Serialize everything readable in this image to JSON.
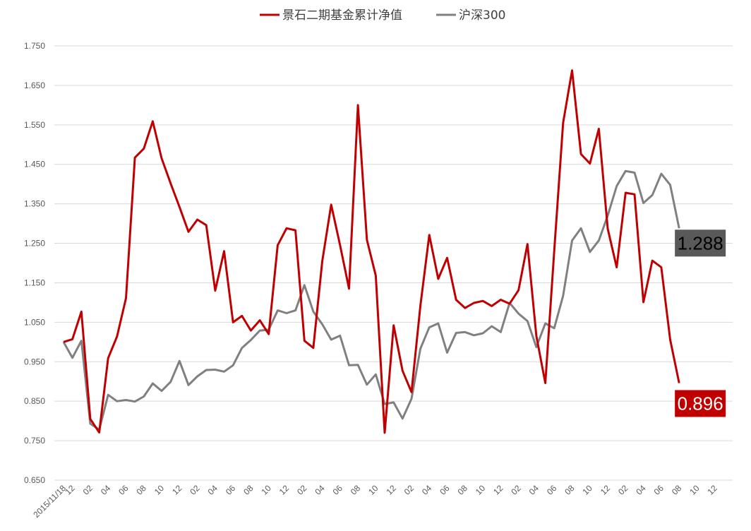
{
  "chart_data": {
    "type": "line",
    "ylim": [
      0.65,
      1.75
    ],
    "y_ticks": [
      "0.650",
      "0.750",
      "0.850",
      "0.950",
      "1.050",
      "1.150",
      "1.250",
      "1.350",
      "1.450",
      "1.550",
      "1.650",
      "1.750"
    ],
    "x_tick_labels": [
      "2015/11/18",
      "12",
      "02",
      "04",
      "06",
      "08",
      "10",
      "12",
      "02",
      "04",
      "06",
      "08",
      "10",
      "12",
      "02",
      "04",
      "06",
      "08",
      "10",
      "12",
      "02",
      "04",
      "06",
      "08",
      "10",
      "12",
      "02",
      "04",
      "06",
      "08",
      "10",
      "12",
      "02",
      "04",
      "06",
      "08",
      "10",
      "12"
    ],
    "grid": true,
    "legend_position": "top",
    "series": [
      {
        "name": "景石二期基金累计净值",
        "color": "#C00000",
        "values": [
          1.0,
          1.007,
          1.077,
          0.805,
          0.771,
          0.959,
          1.014,
          1.111,
          1.467,
          1.49,
          1.559,
          1.465,
          1.402,
          1.342,
          1.279,
          1.31,
          1.296,
          1.13,
          1.23,
          1.05,
          1.066,
          1.029,
          1.055,
          1.02,
          1.245,
          1.288,
          1.283,
          1.003,
          0.985,
          1.205,
          1.348,
          1.245,
          1.135,
          1.6,
          1.259,
          1.168,
          0.77,
          1.042,
          0.927,
          0.873,
          1.092,
          1.271,
          1.16,
          1.213,
          1.107,
          1.086,
          1.099,
          1.104,
          1.091,
          1.107,
          1.097,
          1.131,
          1.248,
          1.015,
          0.896,
          1.23,
          1.555,
          1.688,
          1.476,
          1.452,
          1.54,
          1.287,
          1.189,
          1.378,
          1.374,
          1.101,
          1.206,
          1.189,
          1.006,
          0.896
        ],
        "end_label": "0.896",
        "end_label_fill": "#C00000",
        "end_label_text_color": "#FFFFFF"
      },
      {
        "name": "沪深300",
        "color": "#808080",
        "values": [
          1.0,
          0.96,
          1.003,
          0.793,
          0.778,
          0.866,
          0.85,
          0.853,
          0.849,
          0.862,
          0.895,
          0.876,
          0.899,
          0.952,
          0.891,
          0.913,
          0.929,
          0.93,
          0.925,
          0.941,
          0.985,
          1.005,
          1.029,
          1.031,
          1.08,
          1.073,
          1.08,
          1.144,
          1.077,
          1.045,
          1.006,
          1.016,
          0.941,
          0.942,
          0.892,
          0.918,
          0.843,
          0.847,
          0.806,
          0.856,
          0.983,
          1.037,
          1.047,
          0.973,
          1.023,
          1.025,
          1.017,
          1.022,
          1.04,
          1.025,
          1.099,
          1.072,
          1.053,
          0.987,
          1.047,
          1.035,
          1.117,
          1.257,
          1.288,
          1.228,
          1.257,
          1.32,
          1.395,
          1.433,
          1.429,
          1.352,
          1.372,
          1.426,
          1.398,
          1.288
        ],
        "end_label": "1.288",
        "end_label_fill": "#595959",
        "end_label_text_color": "#000000"
      }
    ]
  }
}
